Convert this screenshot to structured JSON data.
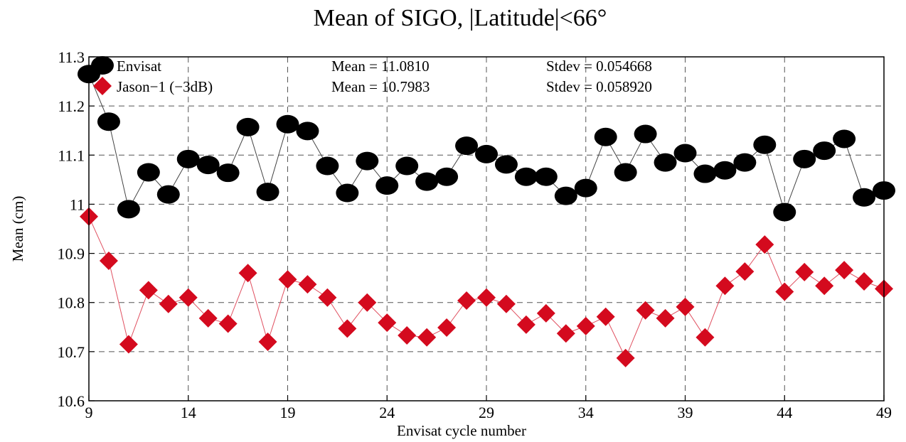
{
  "chart_data": {
    "type": "line",
    "title": "Mean of SIGO, |Latitude|<66°",
    "xlabel": "Envisat cycle number",
    "ylabel": "Mean (cm)",
    "xlim": [
      9,
      49
    ],
    "ylim": [
      10.6,
      11.3
    ],
    "xticks": [
      "9",
      "14",
      "19",
      "24",
      "29",
      "34",
      "39",
      "44",
      "49"
    ],
    "yticks": [
      "10.6",
      "10.7",
      "10.8",
      "10.9",
      "11",
      "11.1",
      "11.2",
      "11.3"
    ],
    "grid": true,
    "legend_position": "top-left",
    "x": [
      9,
      10,
      11,
      12,
      13,
      14,
      15,
      16,
      17,
      18,
      19,
      20,
      21,
      22,
      23,
      24,
      25,
      26,
      27,
      28,
      29,
      30,
      31,
      32,
      33,
      34,
      35,
      36,
      37,
      38,
      39,
      40,
      41,
      42,
      43,
      44,
      45,
      46,
      47,
      48,
      49
    ],
    "series": [
      {
        "name": "Envisat",
        "marker": "circle",
        "color": "#000000",
        "line_color": "#444444",
        "stats": {
          "mean": "Mean = 11.0810",
          "stdev": "Stdev = 0.054668"
        },
        "values": [
          11.265,
          11.168,
          10.99,
          11.065,
          11.02,
          11.092,
          11.08,
          11.064,
          11.157,
          11.025,
          11.163,
          11.149,
          11.078,
          11.023,
          11.088,
          11.038,
          11.078,
          11.046,
          11.056,
          11.119,
          11.102,
          11.081,
          11.056,
          11.056,
          11.017,
          11.033,
          11.137,
          11.065,
          11.143,
          11.085,
          11.104,
          11.062,
          11.069,
          11.085,
          11.121,
          10.984,
          11.092,
          11.109,
          11.133,
          11.014,
          11.028
        ]
      },
      {
        "name": "Jason−1 (−3dB)",
        "marker": "diamond",
        "color": "#d40a1e",
        "line_color": "#e05060",
        "stats": {
          "mean": "Mean = 10.7983",
          "stdev": "Stdev = 0.058920"
        },
        "values": [
          10.975,
          10.885,
          10.715,
          10.825,
          10.797,
          10.81,
          10.768,
          10.757,
          10.86,
          10.72,
          10.847,
          10.837,
          10.81,
          10.747,
          10.8,
          10.759,
          10.733,
          10.729,
          10.749,
          10.804,
          10.81,
          10.797,
          10.755,
          10.778,
          10.737,
          10.752,
          10.771,
          10.687,
          10.784,
          10.768,
          10.791,
          10.729,
          10.834,
          10.863,
          10.918,
          10.822,
          10.862,
          10.834,
          10.866,
          10.843,
          10.828
        ]
      }
    ]
  }
}
